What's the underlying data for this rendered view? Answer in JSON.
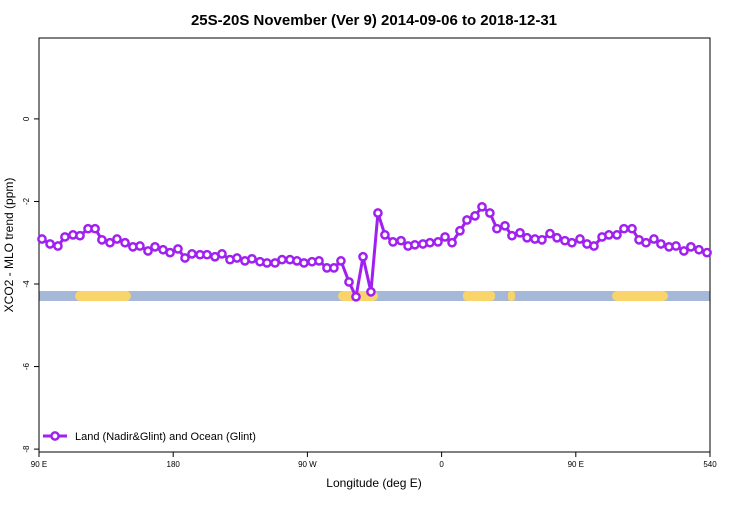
{
  "chart_data": {
    "type": "line",
    "title": "25S-20S November (Ver 9)   2014-09-06 to 2018-12-31",
    "x_label": "Longitude (deg E)",
    "y_label": "XCO2 - MLO trend (ppm)",
    "xlim": [
      90,
      540
    ],
    "ylim": [
      -8.07,
      1.96
    ],
    "xticks": [
      {
        "value": 90,
        "label": "90 E"
      },
      180,
      {
        "value": 270,
        "label": "90 W"
      },
      {
        "value": 360,
        "label": "0"
      },
      {
        "value": 450,
        "label": "90 E"
      },
      540
    ],
    "yticks": [
      0,
      -2,
      -4,
      -6,
      -8
    ],
    "legend_position": "bottom-left",
    "x": [
      92.0,
      97.4,
      102.7,
      107.4,
      112.8,
      117.5,
      122.9,
      127.6,
      132.2,
      137.6,
      142.3,
      147.7,
      153.0,
      157.7,
      163.1,
      167.8,
      173.2,
      177.9,
      183.2,
      187.9,
      192.6,
      198.0,
      202.7,
      208.0,
      212.7,
      218.1,
      222.8,
      228.1,
      232.8,
      238.2,
      242.9,
      248.3,
      253.0,
      258.3,
      263.0,
      267.7,
      273.1,
      277.8,
      283.1,
      287.8,
      292.5,
      297.9,
      302.6,
      307.3,
      312.6,
      317.3,
      322.0,
      327.4,
      332.8,
      337.5,
      342.1,
      347.5,
      352.2,
      357.6,
      362.3,
      367.0,
      372.3,
      377.0,
      382.4,
      387.1,
      392.4,
      397.1,
      402.5,
      407.2,
      412.6,
      417.3,
      422.6,
      427.3,
      432.7,
      437.4,
      442.7,
      447.4,
      452.8,
      457.5,
      462.2,
      467.6,
      472.2,
      477.6,
      482.3,
      487.7,
      492.4,
      497.1,
      502.4,
      507.1,
      512.5,
      517.2,
      522.5,
      527.2,
      532.6,
      538.0
    ],
    "series": [
      {
        "name": "Land (Nadir&Glint) and Ocean (Glint)",
        "color": "#a020f0",
        "values": [
          -2.91,
          -3.03,
          -3.08,
          -2.86,
          -2.81,
          -2.83,
          -2.66,
          -2.66,
          -2.93,
          -3.0,
          -2.91,
          -3.0,
          -3.1,
          -3.08,
          -3.2,
          -3.1,
          -3.17,
          -3.24,
          -3.15,
          -3.37,
          -3.27,
          -3.29,
          -3.29,
          -3.34,
          -3.27,
          -3.41,
          -3.37,
          -3.44,
          -3.39,
          -3.46,
          -3.49,
          -3.49,
          -3.41,
          -3.41,
          -3.44,
          -3.49,
          -3.46,
          -3.44,
          -3.61,
          -3.61,
          -3.44,
          -3.95,
          -4.31,
          -3.34,
          -4.19,
          -2.28,
          -2.81,
          -2.98,
          -2.95,
          -3.08,
          -3.05,
          -3.03,
          -3.0,
          -2.98,
          -2.86,
          -3.0,
          -2.71,
          -2.45,
          -2.35,
          -2.13,
          -2.28,
          -2.66,
          -2.59,
          -2.83,
          -2.76,
          -2.88,
          -2.91,
          -2.93,
          -2.78,
          -2.88,
          -2.95,
          -3.0,
          -2.91,
          -3.03,
          -3.08,
          -2.86,
          -2.81,
          -2.81,
          -2.66,
          -2.66,
          -2.93,
          -3.0,
          -2.91,
          -3.03,
          -3.1,
          -3.08,
          -3.2,
          -3.1,
          -3.17,
          -3.24
        ]
      }
    ]
  }
}
